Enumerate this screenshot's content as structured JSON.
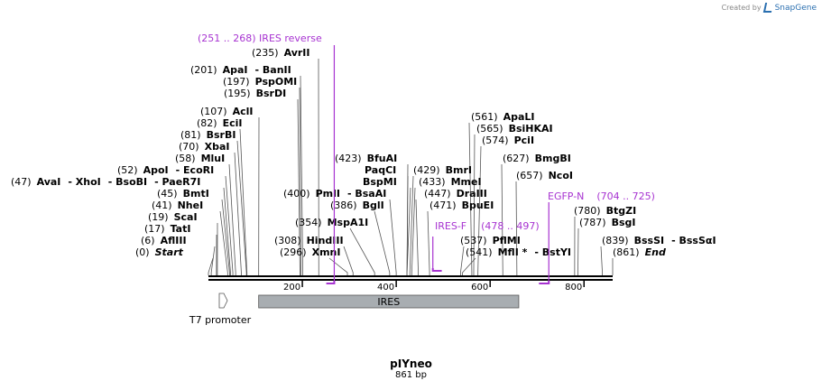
{
  "credit": {
    "prefix": "Created by",
    "brand": "SnapGene"
  },
  "plasmid": {
    "name": "pIYneo",
    "length_label": "861 bp",
    "length_bp": 861
  },
  "axis": {
    "ticks": [
      200,
      400,
      600,
      800
    ]
  },
  "sites": [
    {
      "pos": 0,
      "pos_label": "(0)",
      "name": "Start",
      "italic": true
    },
    {
      "pos": 6,
      "pos_label": "(6)",
      "name": "AflIII"
    },
    {
      "pos": 17,
      "pos_label": "(17)",
      "name": "TatI"
    },
    {
      "pos": 19,
      "pos_label": "(19)",
      "name": "ScaI"
    },
    {
      "pos": 41,
      "pos_label": "(41)",
      "name": "NheI"
    },
    {
      "pos": 45,
      "pos_label": "(45)",
      "name": "BmtI"
    },
    {
      "pos": 47,
      "pos_label": "(47)",
      "name": "AvaI",
      "extra": [
        "- XhoI",
        "- BsoBI",
        "- PaeR7I"
      ]
    },
    {
      "pos": 52,
      "pos_label": "(52)",
      "name": "ApoI",
      "extra": [
        "- EcoRI"
      ]
    },
    {
      "pos": 58,
      "pos_label": "(58)",
      "name": "MluI"
    },
    {
      "pos": 70,
      "pos_label": "(70)",
      "name": "XbaI"
    },
    {
      "pos": 81,
      "pos_label": "(81)",
      "name": "BsrBI"
    },
    {
      "pos": 82,
      "pos_label": "(82)",
      "name": "EciI"
    },
    {
      "pos": 107,
      "pos_label": "(107)",
      "name": "AclI"
    },
    {
      "pos": 195,
      "pos_label": "(195)",
      "name": "BsrDI"
    },
    {
      "pos": 197,
      "pos_label": "(197)",
      "name": "PspOMI"
    },
    {
      "pos": 201,
      "pos_label": "(201)",
      "name": "ApaI",
      "extra": [
        "- BanII"
      ]
    },
    {
      "pos": 235,
      "pos_label": "(235)",
      "name": "AvrII"
    },
    {
      "pos": 296,
      "pos_label": "(296)",
      "name": "XmnI"
    },
    {
      "pos": 308,
      "pos_label": "(308)",
      "name": "HindIII"
    },
    {
      "pos": 354,
      "pos_label": "(354)",
      "name": "MspA1I"
    },
    {
      "pos": 386,
      "pos_label": "(386)",
      "name": "BglI"
    },
    {
      "pos": 400,
      "pos_label": "(400)",
      "name": "PmlI",
      "extra": [
        "- BsaAI"
      ]
    },
    {
      "pos": 423,
      "pos_label": "(423)",
      "name": "BfuAI"
    },
    {
      "pos": 423,
      "pos_label": "",
      "name": "PaqCI"
    },
    {
      "pos": 423,
      "pos_label": "",
      "name": "BspMI"
    },
    {
      "pos": 429,
      "pos_label": "(429)",
      "name": "BmrI"
    },
    {
      "pos": 433,
      "pos_label": "(433)",
      "name": "MmeI"
    },
    {
      "pos": 447,
      "pos_label": "(447)",
      "name": "DraIII"
    },
    {
      "pos": 471,
      "pos_label": "(471)",
      "name": "BpuEI"
    },
    {
      "pos": 537,
      "pos_label": "(537)",
      "name": "PflMI"
    },
    {
      "pos": 541,
      "pos_label": "(541)",
      "name": "MflI *",
      "extra": [
        "- BstYI"
      ]
    },
    {
      "pos": 561,
      "pos_label": "(561)",
      "name": "ApaLI"
    },
    {
      "pos": 565,
      "pos_label": "(565)",
      "name": "BsiHKAI"
    },
    {
      "pos": 574,
      "pos_label": "(574)",
      "name": "PciI"
    },
    {
      "pos": 627,
      "pos_label": "(627)",
      "name": "BmgBI"
    },
    {
      "pos": 657,
      "pos_label": "(657)",
      "name": "NcoI"
    },
    {
      "pos": 780,
      "pos_label": "(780)",
      "name": "BtgZI"
    },
    {
      "pos": 787,
      "pos_label": "(787)",
      "name": "BsgI"
    },
    {
      "pos": 839,
      "pos_label": "(839)",
      "name": "BssSI",
      "extra": [
        "- BssSαI"
      ]
    },
    {
      "pos": 861,
      "pos_label": "(861)",
      "name": "End",
      "italic": true
    }
  ],
  "primers": [
    {
      "label": "(251 .. 268)  IRES reverse",
      "start": 251,
      "end": 268,
      "strand": "reverse"
    },
    {
      "label_name": "IRES-F",
      "label_range": "(478 .. 497)",
      "start": 478,
      "end": 497,
      "strand": "forward"
    },
    {
      "label_name": "EGFP-N",
      "label_range": "(704 .. 725)",
      "start": 704,
      "end": 725,
      "strand": "reverse"
    }
  ],
  "features": [
    {
      "name": "IRES",
      "start": 107,
      "end": 661,
      "color": "#a8adb1"
    },
    {
      "name": "T7 promoter",
      "start": 19,
      "end": 37,
      "color": "#ffffff"
    }
  ],
  "colors": {
    "primer": "#a733d1",
    "backbone": "#000000",
    "feature_fill": "#a8adb1"
  }
}
